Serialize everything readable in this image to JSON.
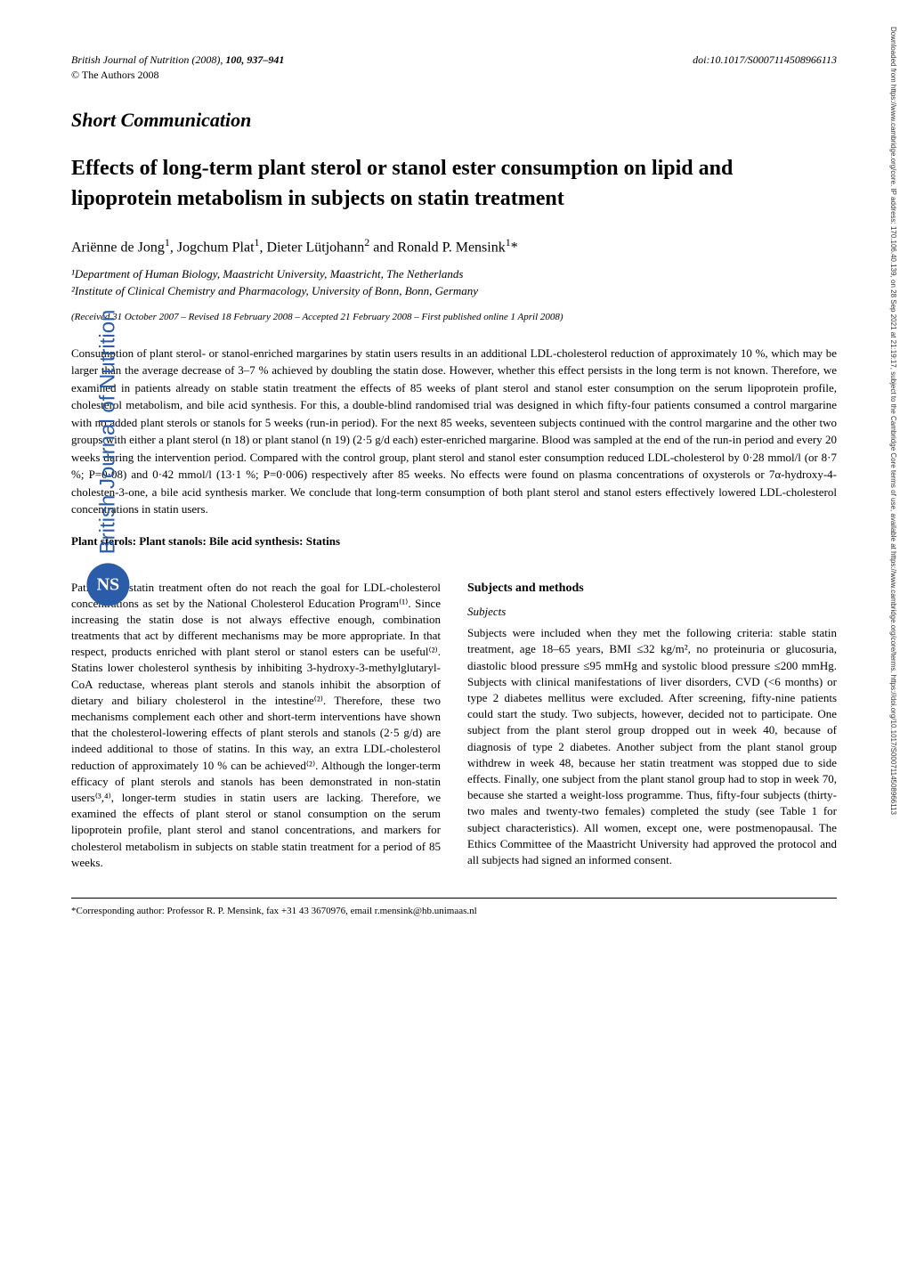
{
  "header": {
    "journal": "British Journal of Nutrition",
    "year": "(2008)",
    "volume_pages": "100, 937–941",
    "doi": "doi:10.1017/S0007114508966113",
    "copyright": "© The Authors 2008"
  },
  "section_label": "Short Communication",
  "title": "Effects of long-term plant sterol or stanol ester consumption on lipid and lipoprotein metabolism in subjects on statin treatment",
  "authors_html": "Ariënne de Jong<sup>1</sup>, Jogchum Plat<sup>1</sup>, Dieter Lütjohann<sup>2</sup> and Ronald P. Mensink<sup>1</sup>*",
  "affiliations": [
    "¹Department of Human Biology, Maastricht University, Maastricht, The Netherlands",
    "²Institute of Clinical Chemistry and Pharmacology, University of Bonn, Bonn, Germany"
  ],
  "dates": "(Received 31 October 2007 – Revised 18 February 2008 – Accepted 21 February 2008 – First published online 1 April 2008)",
  "abstract": "Consumption of plant sterol- or stanol-enriched margarines by statin users results in an additional LDL-cholesterol reduction of approximately 10 %, which may be larger than the average decrease of 3–7 % achieved by doubling the statin dose. However, whether this effect persists in the long term is not known. Therefore, we examined in patients already on stable statin treatment the effects of 85 weeks of plant sterol and stanol ester consumption on the serum lipoprotein profile, cholesterol metabolism, and bile acid synthesis. For this, a double-blind randomised trial was designed in which fifty-four patients consumed a control margarine with no added plant sterols or stanols for 5 weeks (run-in period). For the next 85 weeks, seventeen subjects continued with the control margarine and the other two groups with either a plant sterol (n 18) or plant stanol (n 19) (2·5 g/d each) ester-enriched margarine. Blood was sampled at the end of the run-in period and every 20 weeks during the intervention period. Compared with the control group, plant sterol and stanol ester consumption reduced LDL-cholesterol by 0·28 mmol/l (or 8·7 %; P=0·08) and 0·42 mmol/l (13·1 %; P=0·006) respectively after 85 weeks. No effects were found on plasma concentrations of oxysterols or 7α-hydroxy-4-cholesten-3-one, a bile acid synthesis marker. We conclude that long-term consumption of both plant sterol and stanol esters effectively lowered LDL-cholesterol concentrations in statin users.",
  "keywords": "Plant sterols: Plant stanols: Bile acid synthesis: Statins",
  "intro_paragraph": "Patients on statin treatment often do not reach the goal for LDL-cholesterol concentrations as set by the National Cholesterol Education Program⁽¹⁾. Since increasing the statin dose is not always effective enough, combination treatments that act by different mechanisms may be more appropriate. In that respect, products enriched with plant sterol or stanol esters can be useful⁽²⁾. Statins lower cholesterol synthesis by inhibiting 3-hydroxy-3-methylglutaryl-CoA reductase, whereas plant sterols and stanols inhibit the absorption of dietary and biliary cholesterol in the intestine⁽²⁾. Therefore, these two mechanisms complement each other and short-term interventions have shown that the cholesterol-lowering effects of plant sterols and stanols (2·5 g/d) are indeed additional to those of statins. In this way, an extra LDL-cholesterol reduction of approximately 10 % can be achieved⁽²⁾. Although the longer-term efficacy of plant sterols and stanols has been demonstrated in non-statin users⁽³,⁴⁾, longer-term studies in statin users are lacking. Therefore, we examined the effects of plant sterol or stanol consumption on the serum lipoprotein profile, plant sterol and stanol concentrations, and markers for cholesterol metabolism in subjects on stable statin treatment for a period of 85 weeks.",
  "methods_heading": "Subjects and methods",
  "subjects_heading": "Subjects",
  "subjects_paragraph": "Subjects were included when they met the following criteria: stable statin treatment, age 18–65 years, BMI ≤32 kg/m², no proteinuria or glucosuria, diastolic blood pressure ≤95 mmHg and systolic blood pressure ≤200 mmHg. Subjects with clinical manifestations of liver disorders, CVD (<6 months) or type 2 diabetes mellitus were excluded. After screening, fifty-nine patients could start the study. Two subjects, however, decided not to participate. One subject from the plant sterol group dropped out in week 40, because of diagnosis of type 2 diabetes. Another subject from the plant stanol group withdrew in week 48, because her statin treatment was stopped due to side effects. Finally, one subject from the plant stanol group had to stop in week 70, because she started a weight-loss programme. Thus, fifty-four subjects (thirty-two males and twenty-two females) completed the study (see Table 1 for subject characteristics). All women, except one, were postmenopausal. The Ethics Committee of the Maastricht University had approved the protocol and all subjects had signed an informed consent.",
  "corresponding": "*Corresponding author: Professor R. P. Mensink, fax +31 43 3670976, email r.mensink@hb.unimaas.nl",
  "side_journal": "British Journal of Nutrition",
  "side_logo_text": "NS",
  "right_banner": "Downloaded from https://www.cambridge.org/core. IP address: 170.106.40.139, on 28 Sep 2021 at 21:19:17, subject to the Cambridge Core terms of use, available at https://www.cambridge.org/core/terms. https://doi.org/10.1017/S0007114508966113",
  "colors": {
    "brand_blue": "#2a5caa",
    "text": "#000000",
    "background": "#ffffff"
  },
  "typography": {
    "body_font": "Georgia, Times New Roman, serif",
    "title_size_pt": 24,
    "section_size_pt": 22,
    "body_size_pt": 13
  }
}
